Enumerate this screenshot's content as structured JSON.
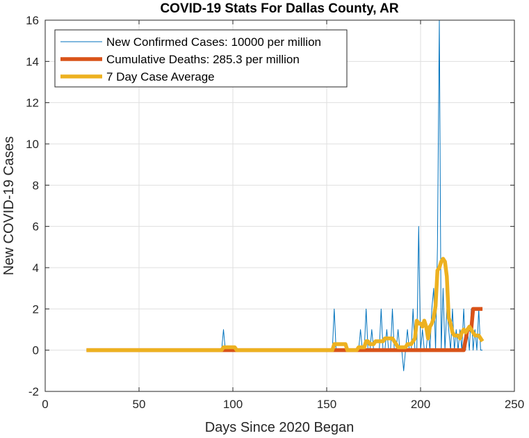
{
  "chart_data": {
    "type": "line",
    "title": "COVID-19 Stats For Dallas County, AR",
    "xlabel": "Days Since 2020 Began",
    "ylabel": "New COVID-19 Cases",
    "xlim": [
      0,
      250
    ],
    "ylim": [
      -2,
      16
    ],
    "xticks": [
      0,
      50,
      100,
      150,
      200,
      250
    ],
    "yticks": [
      -2,
      0,
      2,
      4,
      6,
      8,
      10,
      12,
      14,
      16
    ],
    "grid": true,
    "legend_position": "top-left",
    "series": [
      {
        "name": "New Confirmed Cases: 10000 per million",
        "color": "#0072BD",
        "style": "thin",
        "x": [
          22,
          93,
          94,
          95,
          96,
          97,
          153,
          154,
          155,
          156,
          166,
          167,
          168,
          169,
          170,
          171,
          172,
          173,
          174,
          175,
          176,
          177,
          178,
          179,
          180,
          181,
          182,
          183,
          184,
          185,
          186,
          187,
          188,
          189,
          190,
          191,
          192,
          193,
          194,
          195,
          196,
          197,
          198,
          199,
          200,
          201,
          202,
          203,
          204,
          205,
          206,
          207,
          208,
          209,
          210,
          211,
          212,
          213,
          214,
          215,
          216,
          217,
          218,
          219,
          220,
          221,
          222,
          223,
          224,
          225,
          226,
          227,
          228,
          229,
          230,
          231,
          232,
          233
        ],
        "values": [
          0,
          0,
          0,
          1,
          0,
          0,
          0,
          2,
          0,
          0,
          0,
          0,
          1,
          0,
          0,
          2,
          0,
          0,
          1,
          0,
          0,
          0,
          0,
          2,
          0,
          0,
          1,
          0,
          0,
          2,
          0,
          0,
          1,
          0,
          0,
          -1,
          0,
          1,
          0,
          0,
          2,
          0,
          0,
          6,
          0,
          1,
          0,
          0,
          1,
          0,
          2,
          3,
          0,
          5,
          16,
          0,
          3,
          0,
          2,
          1,
          0,
          2,
          0,
          1,
          0,
          1,
          0,
          2,
          0,
          1,
          0,
          2,
          0,
          1,
          0,
          2,
          0,
          0
        ]
      },
      {
        "name": "Cumulative Deaths: 285.3 per million",
        "color": "#D95319",
        "style": "thick",
        "x": [
          22,
          223,
          224,
          225,
          226,
          227,
          228,
          229,
          230,
          231,
          232,
          233
        ],
        "values": [
          0,
          0,
          0.5,
          1,
          1,
          1,
          2,
          2,
          2,
          2,
          2,
          2
        ]
      },
      {
        "name": "7 Day Case Average",
        "color": "#EDB120",
        "style": "thick",
        "x": [
          22,
          94,
          95,
          96,
          97,
          98,
          99,
          100,
          101,
          102,
          153,
          154,
          155,
          156,
          157,
          158,
          159,
          160,
          161,
          162,
          166,
          167,
          168,
          169,
          170,
          171,
          172,
          173,
          174,
          175,
          176,
          177,
          178,
          179,
          180,
          181,
          182,
          183,
          184,
          185,
          186,
          187,
          188,
          189,
          190,
          191,
          192,
          193,
          194,
          195,
          196,
          197,
          198,
          199,
          200,
          201,
          202,
          203,
          204,
          205,
          206,
          207,
          208,
          209,
          210,
          211,
          212,
          213,
          214,
          215,
          216,
          217,
          218,
          219,
          220,
          221,
          222,
          223,
          224,
          225,
          226,
          227,
          228,
          229,
          230,
          231,
          232,
          233
        ],
        "values": [
          0,
          0,
          0.14,
          0.14,
          0.14,
          0.14,
          0.14,
          0.14,
          0.14,
          0,
          0,
          0.29,
          0.29,
          0.29,
          0.29,
          0.29,
          0.29,
          0.29,
          0,
          0,
          0,
          0.14,
          0.14,
          0.14,
          0.14,
          0.43,
          0.43,
          0.29,
          0.29,
          0.29,
          0.43,
          0.43,
          0.43,
          0.43,
          0.43,
          0.57,
          0.57,
          0.57,
          0.57,
          0.57,
          0.43,
          0.29,
          0.14,
          0.14,
          0.14,
          0.14,
          0.14,
          0.29,
          0.29,
          0.29,
          0.43,
          0.57,
          1.43,
          1.29,
          1.29,
          1.14,
          1.43,
          1.14,
          0.57,
          1.14,
          1.29,
          1.57,
          2.14,
          3.86,
          4.0,
          4.29,
          4.43,
          4.29,
          3.57,
          1.57,
          1.29,
          0.86,
          0.71,
          0.71,
          0.71,
          0.57,
          0.86,
          1.0,
          0.86,
          1.0,
          1.14,
          1.0,
          0.86,
          0.71,
          0.71,
          0.71,
          0.57,
          0.43
        ]
      }
    ]
  }
}
